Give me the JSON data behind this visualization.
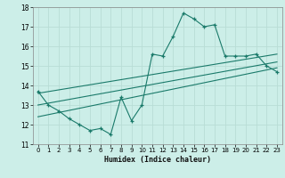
{
  "xlabel": "Humidex (Indice chaleur)",
  "ylabel": "",
  "bg_color": "#cceee8",
  "grid_color": "#b8ddd6",
  "line_color": "#1a7a6a",
  "xlim": [
    -0.5,
    23.5
  ],
  "ylim": [
    11,
    18
  ],
  "xticks": [
    0,
    1,
    2,
    3,
    4,
    5,
    6,
    7,
    8,
    9,
    10,
    11,
    12,
    13,
    14,
    15,
    16,
    17,
    18,
    19,
    20,
    21,
    22,
    23
  ],
  "yticks": [
    11,
    12,
    13,
    14,
    15,
    16,
    17,
    18
  ],
  "main_x": [
    0,
    1,
    2,
    3,
    4,
    5,
    6,
    7,
    8,
    9,
    10,
    11,
    12,
    13,
    14,
    15,
    16,
    17,
    18,
    19,
    20,
    21,
    22,
    23
  ],
  "main_y": [
    13.7,
    13.0,
    12.7,
    12.3,
    12.0,
    11.7,
    11.8,
    11.5,
    13.4,
    12.2,
    13.0,
    15.6,
    15.5,
    16.5,
    17.7,
    17.4,
    17.0,
    17.1,
    15.5,
    15.5,
    15.5,
    15.6,
    15.0,
    14.7
  ],
  "line1_x": [
    0,
    23
  ],
  "line1_y": [
    13.0,
    15.2
  ],
  "line2_x": [
    0,
    23
  ],
  "line2_y": [
    12.4,
    14.9
  ],
  "line3_x": [
    0,
    23
  ],
  "line3_y": [
    13.6,
    15.6
  ],
  "tick_fontsize": 5,
  "xlabel_fontsize": 6,
  "linewidth": 0.8
}
